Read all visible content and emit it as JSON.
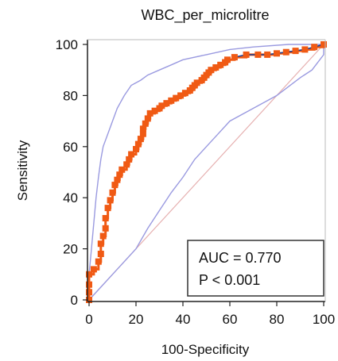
{
  "chart_data": {
    "type": "line",
    "title": "WBC_per_microlitre",
    "xlabel": "100-Specificity",
    "ylabel": "Sensitivity",
    "xlim": [
      0,
      100
    ],
    "ylim": [
      0,
      100
    ],
    "x_ticks": [
      0,
      20,
      40,
      60,
      80,
      100
    ],
    "y_ticks": [
      0,
      20,
      40,
      60,
      80,
      100
    ],
    "grid": false,
    "annotations": [
      "AUC = 0.770",
      "P < 0.001"
    ],
    "colors": {
      "roc": "#f05a14",
      "connector": "#1f3f8f",
      "ci": "#9a9ae0",
      "diagonal": "#e6b0b0"
    },
    "series": [
      {
        "values": [
          [
            0,
            0
          ],
          [
            0,
            3
          ],
          [
            0,
            6
          ],
          [
            0,
            10
          ],
          [
            2,
            12
          ],
          [
            4,
            15
          ],
          [
            5,
            18
          ],
          [
            5,
            22
          ],
          [
            6,
            25
          ],
          [
            7,
            28
          ],
          [
            7,
            32
          ],
          [
            8,
            36
          ],
          [
            9,
            39
          ],
          [
            10,
            42
          ],
          [
            11,
            45
          ],
          [
            12,
            47
          ],
          [
            13,
            49
          ],
          [
            14,
            51
          ],
          [
            16,
            53
          ],
          [
            17,
            55
          ],
          [
            18,
            57
          ],
          [
            20,
            59
          ],
          [
            21,
            61
          ],
          [
            22,
            63
          ],
          [
            23,
            65
          ],
          [
            23,
            67
          ],
          [
            24,
            69
          ],
          [
            25,
            71
          ],
          [
            26,
            73
          ],
          [
            28,
            74
          ],
          [
            30,
            75
          ],
          [
            31,
            76
          ],
          [
            33,
            77
          ],
          [
            35,
            78
          ],
          [
            37,
            79
          ],
          [
            39,
            80
          ],
          [
            41,
            81
          ],
          [
            43,
            82
          ],
          [
            44,
            83
          ],
          [
            45,
            84
          ],
          [
            46,
            85
          ],
          [
            48,
            86
          ],
          [
            49,
            87
          ],
          [
            50,
            88
          ],
          [
            51,
            89
          ],
          [
            52,
            90
          ],
          [
            54,
            91
          ],
          [
            56,
            92
          ],
          [
            58,
            93
          ],
          [
            59,
            94
          ],
          [
            62,
            95
          ],
          [
            67,
            96
          ],
          [
            72,
            96
          ],
          [
            76,
            96
          ],
          [
            80,
            96.5
          ],
          [
            84,
            97
          ],
          [
            88,
            97.5
          ],
          [
            92,
            98
          ],
          [
            96,
            99
          ],
          [
            100,
            100
          ]
        ]
      },
      {
        "role": "ci-upper",
        "values": [
          [
            0,
            0
          ],
          [
            0,
            10
          ],
          [
            1,
            20
          ],
          [
            2,
            30
          ],
          [
            3,
            40
          ],
          [
            4,
            48
          ],
          [
            5,
            55
          ],
          [
            6,
            60
          ],
          [
            8,
            65
          ],
          [
            10,
            70
          ],
          [
            12,
            75
          ],
          [
            15,
            80
          ],
          [
            18,
            84
          ],
          [
            22,
            86
          ],
          [
            25,
            88
          ],
          [
            30,
            90
          ],
          [
            35,
            92
          ],
          [
            40,
            94
          ],
          [
            50,
            96
          ],
          [
            60,
            98
          ],
          [
            70,
            99
          ],
          [
            85,
            100
          ],
          [
            100,
            100
          ]
        ]
      },
      {
        "role": "ci-lower",
        "values": [
          [
            0,
            0
          ],
          [
            5,
            5
          ],
          [
            10,
            10
          ],
          [
            15,
            15
          ],
          [
            20,
            20
          ],
          [
            25,
            28
          ],
          [
            30,
            35
          ],
          [
            35,
            42
          ],
          [
            40,
            48
          ],
          [
            45,
            55
          ],
          [
            50,
            60
          ],
          [
            55,
            65
          ],
          [
            60,
            70
          ],
          [
            70,
            75
          ],
          [
            80,
            80
          ],
          [
            90,
            87
          ],
          [
            95,
            90
          ],
          [
            100,
            96
          ],
          [
            100,
            100
          ]
        ]
      },
      {
        "role": "reference-diagonal",
        "values": [
          [
            0,
            0
          ],
          [
            100,
            100
          ]
        ]
      }
    ]
  }
}
